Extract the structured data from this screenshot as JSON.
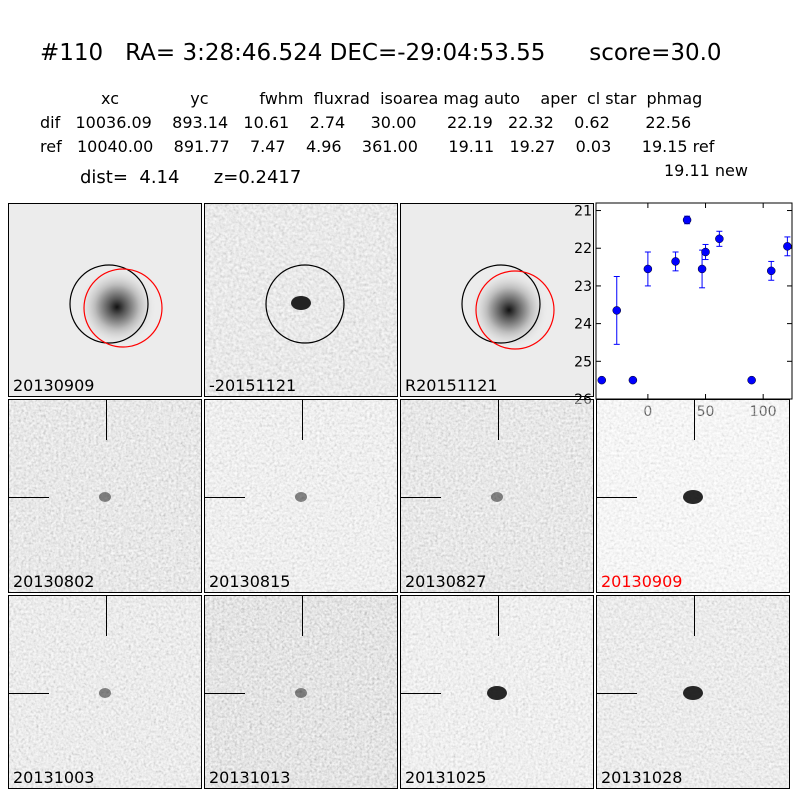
{
  "title": "#110   RA= 3:28:46.524 DEC=-29:04:53.55      score=30.0",
  "table": {
    "header": "            xc              yc          fwhm  fluxrad  isoarea mag auto    aper  cl star  phmag",
    "dif": "dif   10036.09    893.14   10.61    2.74     30.00      22.19   22.32    0.62       22.56",
    "ref": "ref   10040.00    891.77    7.47    4.96    361.00      19.11   19.27    0.03      19.15 ref",
    "new": "19.11 new",
    "dist": "dist=  4.14      z=0.2417"
  },
  "top_panels": [
    {
      "label": "20130909",
      "label_color": "black"
    },
    {
      "label": "-20151121",
      "label_color": "black"
    },
    {
      "label": "R20151121",
      "label_color": "black"
    }
  ],
  "stamps": [
    {
      "label": "20130802",
      "label_color": "black"
    },
    {
      "label": "20130815",
      "label_color": "black"
    },
    {
      "label": "20130827",
      "label_color": "black"
    },
    {
      "label": "20130909",
      "label_color": "red"
    },
    {
      "label": "20131003",
      "label_color": "black"
    },
    {
      "label": "20131013",
      "label_color": "black"
    },
    {
      "label": "20131025",
      "label_color": "black"
    },
    {
      "label": "20131028",
      "label_color": "black"
    }
  ],
  "chart_data": {
    "type": "scatter",
    "x_ticks": [
      "0",
      "50",
      "100"
    ],
    "x_tick_values": [
      0,
      50,
      100
    ],
    "y_ticks": [
      "21",
      "22",
      "23",
      "24",
      "25",
      "26"
    ],
    "y_tick_values": [
      21,
      22,
      23,
      24,
      25,
      26
    ],
    "xlim": [
      -45,
      125
    ],
    "ylim": [
      26,
      20.8
    ],
    "y_inverted": true,
    "marker_color": "#0000ff",
    "points": [
      {
        "x": -40,
        "y": 25.5,
        "err": 0
      },
      {
        "x": -27,
        "y": 23.65,
        "err": 0.9
      },
      {
        "x": -13,
        "y": 25.5,
        "err": 0
      },
      {
        "x": 0,
        "y": 22.55,
        "err": 0.45
      },
      {
        "x": 24,
        "y": 22.35,
        "err": 0.25
      },
      {
        "x": 34,
        "y": 21.25,
        "err": 0.1
      },
      {
        "x": 47,
        "y": 22.55,
        "err": 0.5
      },
      {
        "x": 50,
        "y": 22.1,
        "err": 0.2
      },
      {
        "x": 62,
        "y": 21.75,
        "err": 0.2
      },
      {
        "x": 90,
        "y": 25.5,
        "err": 0
      },
      {
        "x": 107,
        "y": 22.6,
        "err": 0.25
      },
      {
        "x": 121,
        "y": 21.95,
        "err": 0.25
      }
    ]
  }
}
